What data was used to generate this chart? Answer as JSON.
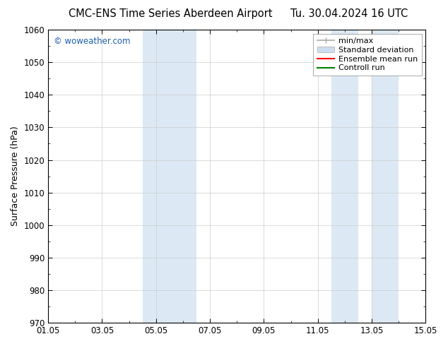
{
  "title_left": "CMC-ENS Time Series Aberdeen Airport",
  "title_right": "Tu. 30.04.2024 16 UTC",
  "ylabel": "Surface Pressure (hPa)",
  "ylim": [
    970,
    1060
  ],
  "yticks": [
    970,
    980,
    990,
    1000,
    1010,
    1020,
    1030,
    1040,
    1050,
    1060
  ],
  "xtick_labels": [
    "01.05",
    "03.05",
    "05.05",
    "07.05",
    "09.05",
    "11.05",
    "13.05",
    "15.05"
  ],
  "xtick_positions": [
    0,
    2,
    4,
    6,
    8,
    10,
    12,
    14
  ],
  "x_min": 0,
  "x_max": 14,
  "shaded_bands": [
    {
      "x_start": 3.5,
      "x_end": 5.5
    },
    {
      "x_start": 10.5,
      "x_end": 11.5
    },
    {
      "x_start": 12.0,
      "x_end": 13.0
    }
  ],
  "shaded_color": "#dce9f5",
  "watermark": "© woweather.com",
  "watermark_color": "#1a5faa",
  "legend_entries": [
    {
      "label": "min/max",
      "color": "#aaaaaa",
      "lw": 1.2,
      "type": "minmax"
    },
    {
      "label": "Standard deviation",
      "color": "#ccddf0",
      "type": "patch"
    },
    {
      "label": "Ensemble mean run",
      "color": "red",
      "lw": 1.5,
      "type": "line"
    },
    {
      "label": "Controll run",
      "color": "green",
      "lw": 1.5,
      "type": "line"
    }
  ],
  "bg_color": "#ffffff",
  "grid_color": "#cccccc",
  "title_fontsize": 10.5,
  "label_fontsize": 9,
  "tick_fontsize": 8.5,
  "legend_fontsize": 8
}
